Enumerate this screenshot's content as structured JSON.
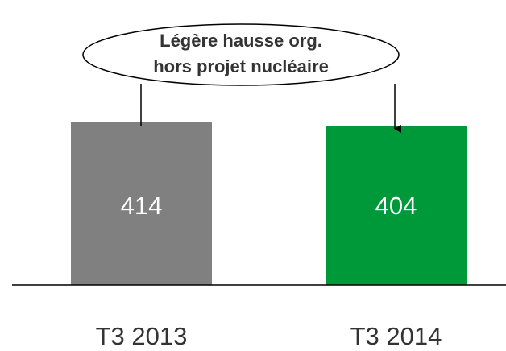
{
  "chart_data": {
    "type": "bar",
    "categories": [
      "T3 2013",
      "T3 2014"
    ],
    "values": [
      414,
      404
    ],
    "colors": [
      "#808080",
      "#00993a"
    ],
    "annotation": [
      "Légère hausse org.",
      "hors projet nucléaire"
    ]
  }
}
